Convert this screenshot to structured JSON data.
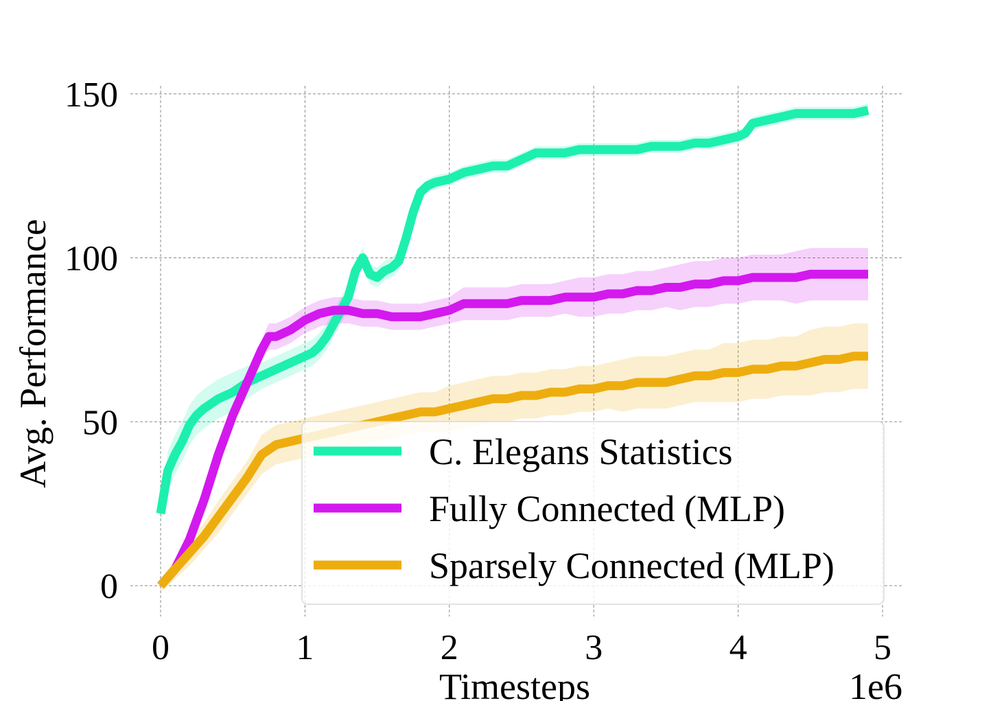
{
  "chart_data": {
    "type": "line",
    "title": "",
    "xlabel": "Timesteps",
    "ylabel": "Avg. Performance",
    "x_offset_label": "1e6",
    "xlim": [
      -0.2,
      5.1
    ],
    "ylim": [
      -10,
      152
    ],
    "x_ticks": [
      0,
      1,
      2,
      3,
      4,
      5
    ],
    "y_ticks": [
      0,
      50,
      100,
      150
    ],
    "grid": true,
    "legend_position": "lower-right",
    "series": [
      {
        "name": "C. Elegans Statistics",
        "color": "#1DEFAF",
        "x": [
          0,
          0.05,
          0.1,
          0.15,
          0.2,
          0.25,
          0.3,
          0.4,
          0.5,
          0.6,
          0.7,
          0.8,
          0.9,
          1.0,
          1.05,
          1.1,
          1.15,
          1.2,
          1.25,
          1.3,
          1.35,
          1.4,
          1.45,
          1.5,
          1.55,
          1.6,
          1.65,
          1.7,
          1.75,
          1.8,
          1.85,
          1.9,
          2.0,
          2.1,
          2.2,
          2.3,
          2.4,
          2.5,
          2.6,
          2.7,
          2.8,
          2.9,
          3.0,
          3.1,
          3.2,
          3.3,
          3.4,
          3.5,
          3.6,
          3.7,
          3.8,
          3.9,
          4.0,
          4.05,
          4.1,
          4.2,
          4.3,
          4.4,
          4.5,
          4.6,
          4.7,
          4.8,
          4.9
        ],
        "y": [
          22,
          35,
          40,
          44,
          49,
          52,
          54,
          57,
          59,
          62,
          64,
          66,
          68,
          70,
          71,
          73,
          76,
          80,
          84,
          88,
          96,
          100,
          95,
          94,
          96,
          97,
          99,
          106,
          114,
          120,
          122,
          123,
          124,
          126,
          127,
          128,
          128,
          130,
          132,
          132,
          132,
          133,
          133,
          133,
          133,
          133,
          134,
          134,
          134,
          135,
          135,
          136,
          137,
          138,
          141,
          142,
          143,
          144,
          144,
          144,
          144,
          144,
          145
        ],
        "band_halfwidth": [
          3,
          6,
          6,
          6,
          6,
          6,
          6,
          6,
          6,
          5,
          4,
          4,
          4,
          4,
          4,
          4,
          4,
          4,
          4,
          4,
          3,
          3,
          3,
          3,
          3,
          3,
          3,
          2,
          2,
          2,
          2,
          2,
          2,
          2,
          2,
          2,
          2,
          2,
          2,
          2,
          2,
          2,
          2,
          2,
          2,
          2,
          2,
          2,
          2,
          2,
          2,
          2,
          2,
          2,
          2,
          2,
          2,
          2,
          2,
          2,
          2,
          2,
          2
        ]
      },
      {
        "name": "Fully Connected (MLP)",
        "color": "#D319EE",
        "x": [
          0,
          0.1,
          0.2,
          0.3,
          0.4,
          0.5,
          0.6,
          0.7,
          0.75,
          0.8,
          0.85,
          0.9,
          1.0,
          1.1,
          1.2,
          1.3,
          1.4,
          1.5,
          1.6,
          1.7,
          1.8,
          1.9,
          2.0,
          2.1,
          2.2,
          2.3,
          2.4,
          2.5,
          2.6,
          2.7,
          2.8,
          2.9,
          3.0,
          3.1,
          3.2,
          3.3,
          3.4,
          3.5,
          3.6,
          3.7,
          3.8,
          3.9,
          4.0,
          4.1,
          4.2,
          4.3,
          4.4,
          4.5,
          4.6,
          4.7,
          4.8,
          4.9
        ],
        "y": [
          0,
          5,
          14,
          26,
          40,
          52,
          62,
          72,
          76,
          76,
          77,
          78,
          81,
          83,
          84,
          84,
          83,
          83,
          82,
          82,
          82,
          83,
          84,
          86,
          86,
          86,
          86,
          87,
          87,
          87,
          88,
          88,
          88,
          89,
          89,
          90,
          90,
          91,
          91,
          92,
          92,
          93,
          93,
          94,
          94,
          94,
          94,
          95,
          95,
          95,
          95,
          95
        ],
        "band_halfwidth": [
          0,
          2,
          3,
          3,
          3,
          3,
          3,
          3,
          4,
          4,
          4,
          4,
          4,
          4,
          4,
          4,
          4,
          4,
          4,
          4,
          4,
          4,
          4,
          5,
          5,
          5,
          5,
          5,
          5,
          5,
          5,
          6,
          6,
          6,
          6,
          6,
          6,
          6,
          7,
          7,
          7,
          7,
          7,
          7,
          7,
          7,
          8,
          8,
          8,
          8,
          8,
          8
        ]
      },
      {
        "name": "Sparsely Connected (MLP)",
        "color": "#EEAD0E",
        "x": [
          0,
          0.1,
          0.2,
          0.3,
          0.4,
          0.5,
          0.6,
          0.7,
          0.8,
          0.9,
          1.0,
          1.1,
          1.2,
          1.3,
          1.4,
          1.5,
          1.6,
          1.7,
          1.8,
          1.9,
          2.0,
          2.1,
          2.2,
          2.3,
          2.4,
          2.5,
          2.6,
          2.7,
          2.8,
          2.9,
          3.0,
          3.1,
          3.2,
          3.3,
          3.4,
          3.5,
          3.6,
          3.7,
          3.8,
          3.9,
          4.0,
          4.1,
          4.2,
          4.3,
          4.4,
          4.5,
          4.6,
          4.7,
          4.8,
          4.9
        ],
        "y": [
          0,
          5,
          10,
          15,
          21,
          27,
          33,
          40,
          43,
          44,
          45,
          46,
          47,
          48,
          49,
          50,
          51,
          52,
          53,
          53,
          54,
          55,
          56,
          57,
          57,
          58,
          58,
          59,
          59,
          60,
          60,
          61,
          61,
          62,
          62,
          62,
          63,
          64,
          64,
          65,
          65,
          66,
          66,
          67,
          67,
          68,
          69,
          69,
          70,
          70
        ],
        "band_halfwidth": [
          2,
          3,
          4,
          4,
          5,
          5,
          5,
          6,
          6,
          6,
          6,
          6,
          6,
          6,
          6,
          6,
          6,
          6,
          6,
          6,
          7,
          7,
          7,
          7,
          7,
          7,
          7,
          7,
          7,
          7,
          7,
          7,
          8,
          8,
          8,
          8,
          8,
          8,
          8,
          9,
          9,
          9,
          9,
          9,
          9,
          10,
          10,
          10,
          10,
          10
        ]
      }
    ]
  }
}
